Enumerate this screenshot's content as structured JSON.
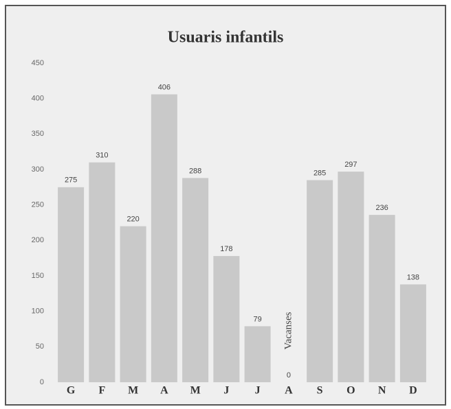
{
  "chart_data": {
    "type": "bar",
    "title": "Usuaris infantils",
    "categories": [
      "G",
      "F",
      "M",
      "A",
      "M",
      "J",
      "J",
      "A",
      "S",
      "O",
      "N",
      "D"
    ],
    "values": [
      275,
      310,
      220,
      406,
      288,
      178,
      79,
      0,
      285,
      297,
      236,
      138
    ],
    "color": "#c9c9c9",
    "ylim": [
      0,
      450
    ],
    "yticks": [
      0,
      50,
      100,
      150,
      200,
      250,
      300,
      350,
      400,
      450
    ],
    "grid": false,
    "value_labels_shown": true,
    "annotation": "Vacanses"
  }
}
